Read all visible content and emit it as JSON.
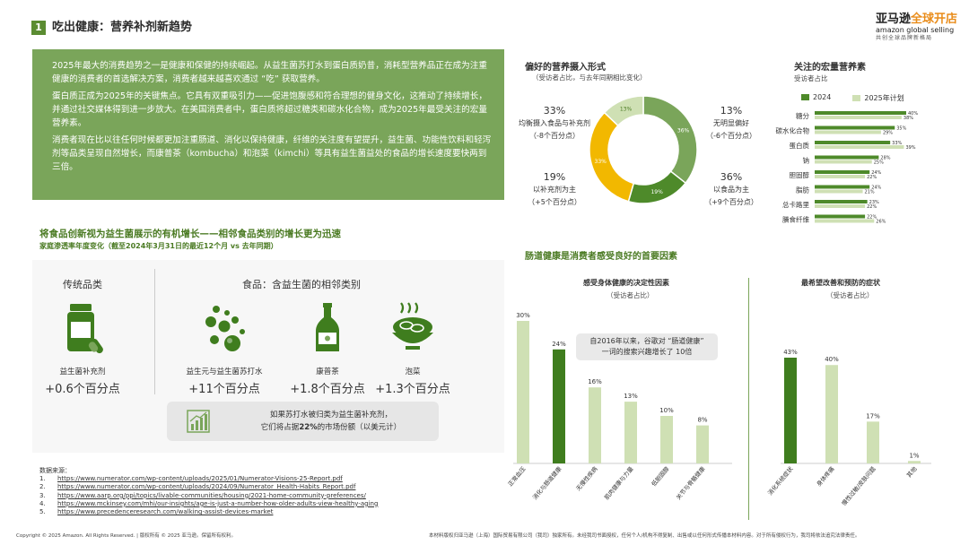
{
  "header": {
    "section_number": "1",
    "title": "吃出健康：营养补剂新趋势",
    "logo_line1_a": "亚马逊",
    "logo_line1_b": "全球开店",
    "logo_line2": "amazon global selling",
    "logo_line3": "共创全球品牌新格局"
  },
  "intro": {
    "p1": "2025年最大的消费趋势之一是健康和保健的持续崛起。从益生菌苏打水到蛋白质奶昔，消耗型营养品正在成为注重健康的消费者的首选解决方案，消费者越来越喜欢通过 “吃” 获取营养。",
    "p2": "蛋白质正成为2025年的关键焦点。它具有双重吸引力——促进饱腹感和符合理想的健身文化，这推动了持续增长，并通过社交媒体得到进一步放大。在美国消费者中，蛋白质将超过糖类和碳水化合物，成为2025年最受关注的宏量营养素。",
    "p3": "消费者现在比以往任何时候都更加注重肠道、消化以保持健康，纤维的关注度有望提升，益生菌、功能性饮料和轻泻剂等品类呈现自然增长，而康普茶（kombucha）和泡菜（kimchi）等具有益生菌益处的食品的增长速度要快两到三倍。"
  },
  "food_section": {
    "title": "将食品创新视为益生菌展示的有机增长——相邻食品类别的增长更为迅速",
    "subtitle": "家庭渗透率年度变化（截至2024年3月31日的最近12个月 vs 去年同期）",
    "traditional_head": "传统品类",
    "adjacent_head": "食品：含益生菌的相邻类别",
    "items": [
      {
        "label": "益生菌补充剂",
        "value": "+0.6个百分点",
        "icon": "supplement-bottle-icon"
      },
      {
        "label": "益生元与益生菌苏打水",
        "value": "+11个百分点",
        "icon": "soda-bubbles-icon"
      },
      {
        "label": "康普茶",
        "value": "+1.8个百分点",
        "icon": "kombucha-bottle-icon"
      },
      {
        "label": "泡菜",
        "value": "+1.3个百分点",
        "icon": "kimchi-bowl-icon"
      }
    ],
    "callout_line1": "如果苏打水被归类为益生菌补充剂，",
    "callout_line2_a": "它们将占据",
    "callout_line2_b": "22%",
    "callout_line2_c": "的市场份额（以美元计）",
    "callout_icon": "growth-chart-icon"
  },
  "sources": {
    "heading": "数据来源：",
    "items": [
      {
        "n": "1.",
        "url": "https://www.numerator.com/wp-content/uploads/2025/01/Numerator-Visions-25-Report.pdf"
      },
      {
        "n": "2.",
        "url": "https://www.numerator.com/wp-content/uploads/2024/09/Numerator_Health-Habits_Report.pdf"
      },
      {
        "n": "3.",
        "url": "https://www.aarp.org/ppi/topics/livable-communities/housing/2021-home-community-preferences/"
      },
      {
        "n": "4.",
        "url": "https://www.mckinsey.com/mhi/our-insights/age-is-just-a-number-how-older-adults-view-healthy-aging"
      },
      {
        "n": "5.",
        "url": "https://www.precedenceresearch.com/walking-assist-devices-market"
      }
    ]
  },
  "footer": {
    "left": "Copyright © 2025 Amazon. All Rights Reserved. | 版权所有 © 2025 亚马逊。保留所有权利。",
    "right": "本材料版权归亚马逊（上海）国际贸易有限公司（我司）独家所有。未经我司书面授权，任何个人/机构不得复制、出售或以任何形式传播本材料内容。对于所有侵权行为，我司将依法追究法律责任。"
  },
  "colors": {
    "dark_green": "#3f7d1e",
    "mid_green": "#7aa55a",
    "light_green": "#cfe0b4",
    "yellow": "#f2b800",
    "panel_bg": "#f7f7f7"
  },
  "donut": {
    "title": "偏好的营养摄入形式",
    "subtitle": "（受访者占比，与去年同期相比变化）",
    "labels": [
      {
        "pct": "33%",
        "line1": "均衡摄入食品与补充剂",
        "line2": "（-8个百分点）"
      },
      {
        "pct": "13%",
        "line1": "无明显偏好",
        "line2": "（-6个百分点）"
      },
      {
        "pct": "19%",
        "line1": "以补充剂为主",
        "line2": "（+5个百分点）"
      },
      {
        "pct": "36%",
        "line1": "以食品为主",
        "line2": "（+9个百分点）"
      }
    ]
  },
  "macro": {
    "title": "关注的宏量营养素",
    "subtitle": "受访者占比",
    "legend_2024": "2024",
    "legend_2025": "2025年计划"
  },
  "gut": {
    "title": "肠道健康是消费者感受良好的首要因素",
    "chart1_title": "感受身体健康的决定性因素",
    "chart1_sub": "（受访者占比）",
    "chart2_title": "最希望改善和预防的症状",
    "chart2_sub": "（受访者占比）",
    "note_line1": "自2016年以来，谷歌对 “肠道健康”",
    "note_line2": "一词的搜索兴趣增长了 10倍"
  },
  "chart_data": [
    {
      "type": "pie",
      "title": "偏好的营养摄入形式",
      "categories": [
        "以食品为主",
        "以补充剂为主",
        "均衡摄入食品与补充剂",
        "无明显偏好"
      ],
      "values": [
        36,
        19,
        33,
        13
      ],
      "colors": [
        "#7aa55a",
        "#4e8a2a",
        "#f2b800",
        "#cfe0b4"
      ]
    },
    {
      "type": "bar",
      "title": "关注的宏量营养素",
      "categories": [
        "糖分",
        "碳水化合物",
        "蛋白质",
        "钠",
        "胆固醇",
        "脂肪",
        "总卡路里",
        "膳食纤维"
      ],
      "series": [
        {
          "name": "2024",
          "values": [
            40,
            35,
            33,
            28,
            24,
            24,
            23,
            22
          ],
          "color": "#4e8a2a"
        },
        {
          "name": "2025年计划",
          "values": [
            38,
            29,
            39,
            25,
            22,
            21,
            22,
            26
          ],
          "color": "#cfe0b4"
        }
      ],
      "xlim": [
        0,
        40
      ]
    },
    {
      "type": "bar",
      "title": "感受身体健康的决定性因素",
      "categories": [
        "正常血压",
        "消化与肠道健康",
        "无慢性疾病",
        "肌肉健康与力量",
        "低胆固醇",
        "关节与骨骼健康"
      ],
      "values": [
        30,
        24,
        16,
        13,
        10,
        8
      ],
      "highlight_index": 1,
      "ylim": [
        0,
        30
      ]
    },
    {
      "type": "bar",
      "title": "最希望改善和预防的症状",
      "categories": [
        "消化系统症状",
        "身体疼痛",
        "慢性过敏/皮肤问题",
        "其他"
      ],
      "values": [
        43,
        40,
        17,
        1
      ],
      "highlight_index": 0,
      "ylim": [
        0,
        43
      ]
    }
  ]
}
